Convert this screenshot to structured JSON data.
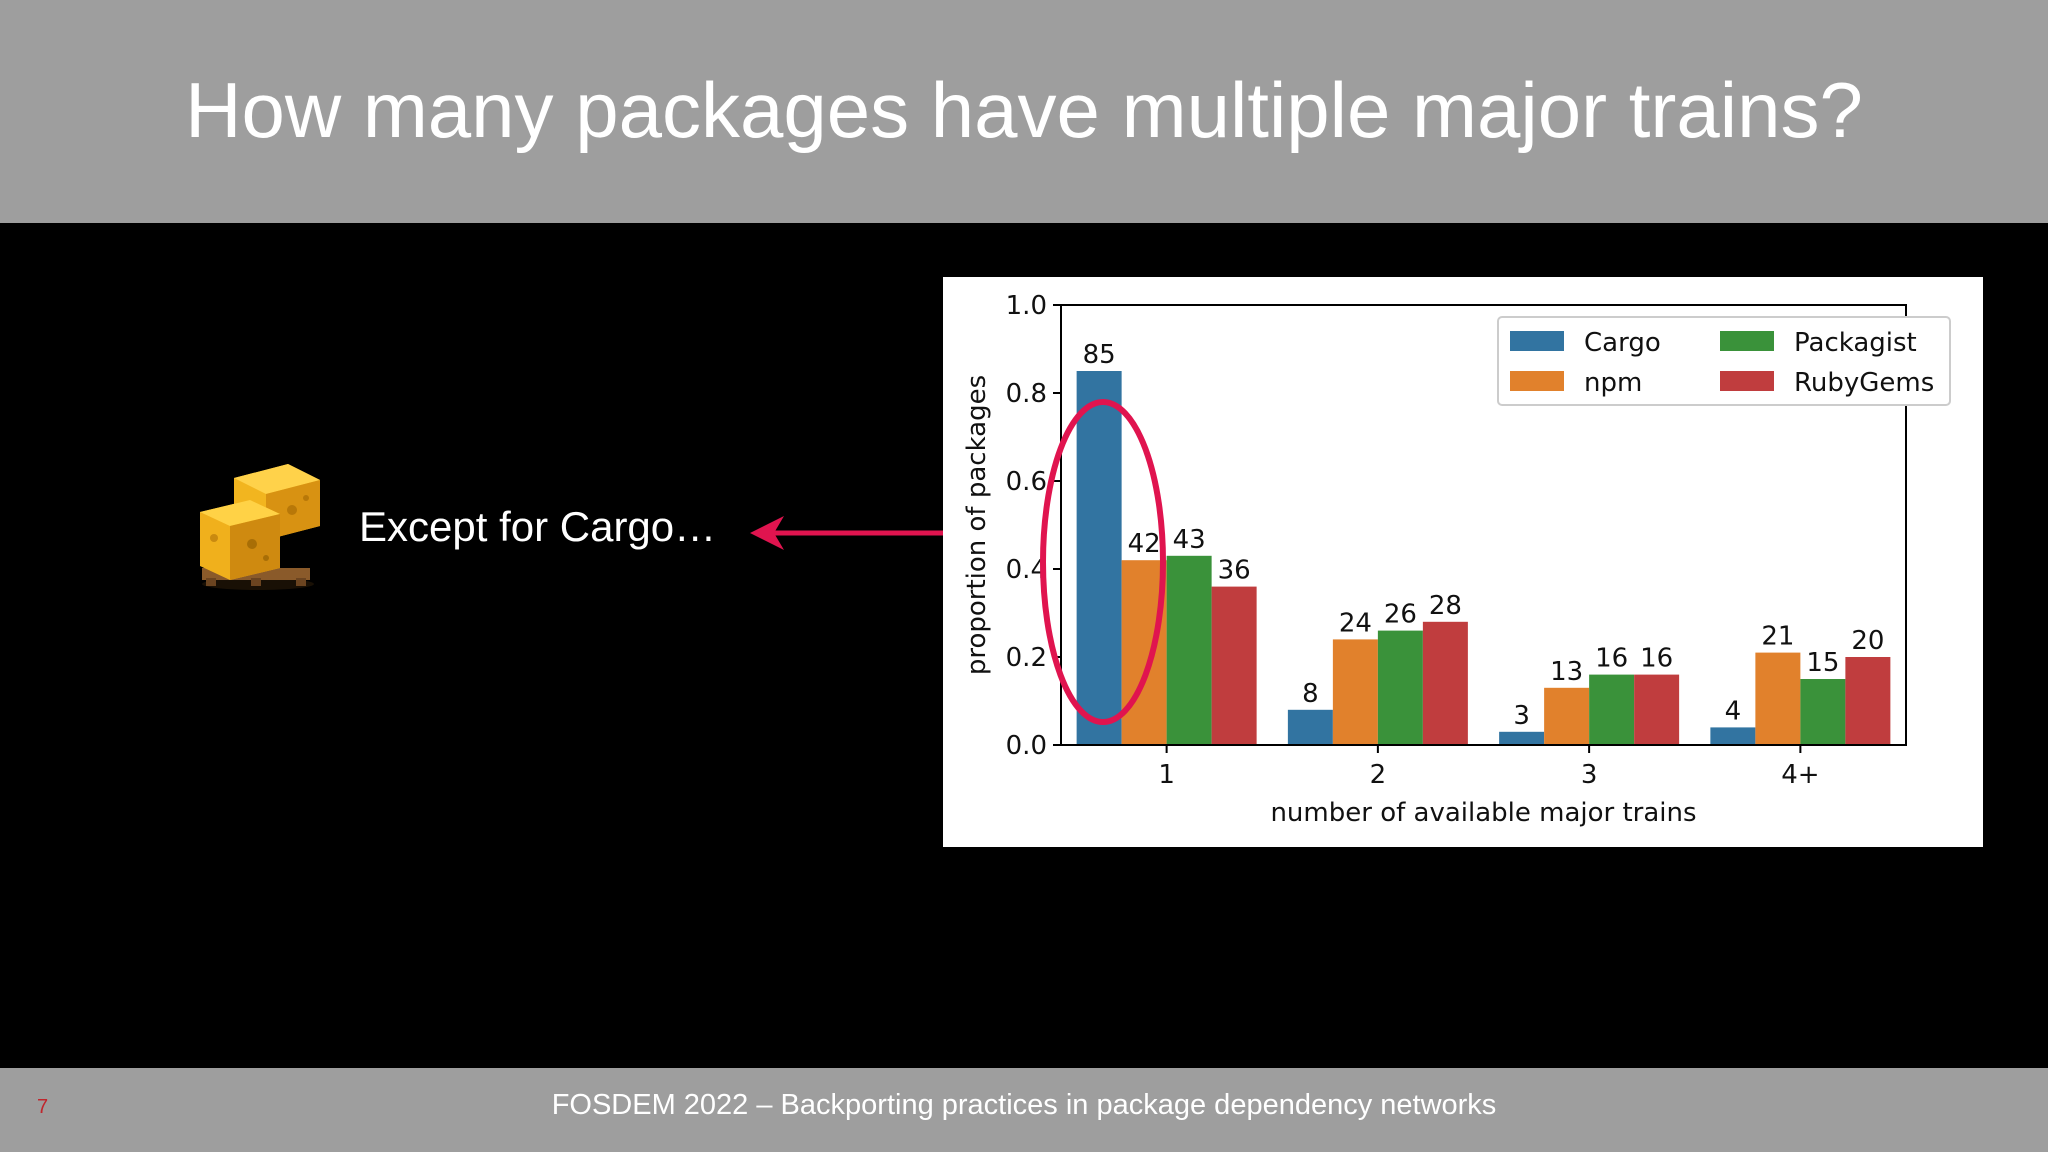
{
  "slide": {
    "title": "How many packages have multiple major trains?",
    "side_label": "Except for Cargo…",
    "slide_number": "7",
    "footer": "FOSDEM 2022 – Backporting practices in package dependency networks"
  },
  "colors": {
    "header_bg": "#9e9e9e",
    "slide_bg": "#000000",
    "highlight": "#e0144f",
    "slide_number": "#c0262d"
  },
  "icons": {
    "logo": "cargo-crates-icon"
  },
  "chart_data": {
    "type": "bar",
    "categories": [
      "1",
      "2",
      "3",
      "4+"
    ],
    "series": [
      {
        "name": "Cargo",
        "color": "#3274a1",
        "values": [
          0.85,
          0.08,
          0.03,
          0.04
        ],
        "labels": [
          "85",
          "8",
          "3",
          "4"
        ]
      },
      {
        "name": "npm",
        "color": "#e1812c",
        "values": [
          0.42,
          0.24,
          0.13,
          0.21
        ],
        "labels": [
          "42",
          "24",
          "13",
          "21"
        ]
      },
      {
        "name": "Packagist",
        "color": "#3a923a",
        "values": [
          0.43,
          0.26,
          0.16,
          0.15
        ],
        "labels": [
          "43",
          "26",
          "16",
          "15"
        ]
      },
      {
        "name": "RubyGems",
        "color": "#c03d3e",
        "values": [
          0.36,
          0.28,
          0.16,
          0.2
        ],
        "labels": [
          "36",
          "28",
          "16",
          "20"
        ]
      }
    ],
    "xlabel": "number of available major trains",
    "ylabel": "proportion of packages",
    "ylim": [
      0,
      1.0
    ],
    "yticks": [
      "0.0",
      "0.2",
      "0.4",
      "0.6",
      "0.8",
      "1.0"
    ],
    "legend_position": "top-right",
    "grid": false
  }
}
